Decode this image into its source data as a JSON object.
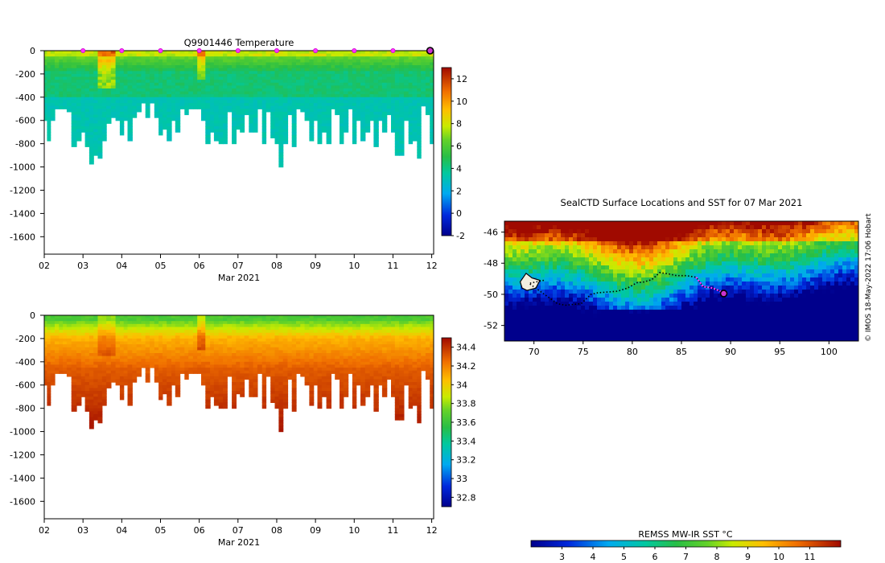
{
  "chart_data": [
    {
      "type": "heatmap",
      "id": "temperature-section",
      "title": "Q9901446  Temperature",
      "xlabel": "Mar 2021",
      "xticks": [
        "02",
        "03",
        "04",
        "05",
        "06",
        "07",
        "08",
        "09",
        "10",
        "11",
        "12"
      ],
      "xlim": [
        2,
        12.05
      ],
      "ylim": [
        -1750,
        0
      ],
      "yticks": [
        0,
        -200,
        -400,
        -600,
        -800,
        -1000,
        -1200,
        -1400,
        -1600
      ],
      "colorbar": {
        "min": -2,
        "max": 13,
        "ticks": [
          12,
          10,
          8,
          6,
          4,
          2,
          0,
          -2
        ]
      },
      "variable": "temperature",
      "surface_markers_day": [
        3,
        4,
        5,
        6,
        7,
        8,
        9,
        10,
        11
      ],
      "last_position_day": 12,
      "profiles": {
        "day": [
          2.0,
          2.07,
          2.16,
          2.27,
          2.38,
          2.48,
          2.58,
          2.7,
          2.83,
          2.95,
          3.05,
          3.16,
          3.27,
          3.38,
          3.49,
          3.6,
          3.72,
          3.84,
          3.95,
          4.05,
          4.15,
          4.27,
          4.38,
          4.5,
          4.61,
          4.72,
          4.84,
          4.95,
          5.05,
          5.16,
          5.28,
          5.38,
          5.5,
          5.62,
          5.72,
          5.84,
          5.95,
          6.05,
          6.16,
          6.28,
          6.38,
          6.5,
          6.61,
          6.72,
          6.84,
          6.95,
          7.05,
          7.16,
          7.28,
          7.39,
          7.5,
          7.62,
          7.72,
          7.84,
          7.95,
          8.05,
          8.16,
          8.28,
          8.39,
          8.5,
          8.61,
          8.72,
          8.84,
          8.95,
          9.05,
          9.16,
          9.28,
          9.4,
          9.5,
          9.62,
          9.72,
          9.84,
          9.95,
          10.05,
          10.16,
          10.28,
          10.4,
          10.5,
          10.62,
          10.72,
          10.84,
          10.95,
          11.05,
          11.16,
          11.28,
          11.4,
          11.5,
          11.62,
          11.72,
          11.84,
          11.95
        ],
        "max_depth": [
          600,
          760,
          600,
          500,
          490,
          500,
          520,
          820,
          760,
          680,
          820,
          960,
          900,
          920,
          760,
          620,
          560,
          600,
          720,
          600,
          760,
          560,
          520,
          450,
          560,
          440,
          560,
          720,
          660,
          760,
          580,
          680,
          480,
          540,
          480,
          500,
          500,
          580,
          780,
          700,
          760,
          780,
          780,
          520,
          800,
          660,
          700,
          540,
          700,
          700,
          500,
          800,
          520,
          740,
          780,
          980,
          800,
          540,
          820,
          480,
          520,
          600,
          760,
          600,
          800,
          680,
          800,
          500,
          540,
          800,
          700,
          500,
          780,
          600,
          760,
          680,
          600,
          820,
          600,
          700,
          540,
          700,
          890,
          880,
          600,
          800,
          760,
          910,
          460,
          540,
          780,
          760
        ]
      }
    },
    {
      "type": "heatmap",
      "id": "salinity-section",
      "title": "",
      "xlabel": "Mar 2021",
      "xticks": [
        "02",
        "03",
        "04",
        "05",
        "06",
        "07",
        "08",
        "09",
        "10",
        "11",
        "12"
      ],
      "xlim": [
        2,
        12.05
      ],
      "ylim": [
        -1750,
        0
      ],
      "yticks": [
        0,
        -200,
        -400,
        -600,
        -800,
        -1000,
        -1200,
        -1400,
        -1600
      ],
      "colorbar": {
        "min": 32.7,
        "max": 34.5,
        "ticks": [
          "34.4",
          "34.2",
          "34",
          "33.8",
          "33.6",
          "33.4",
          "33.2",
          "33",
          "32.8"
        ]
      },
      "variable": "salinity"
    },
    {
      "type": "heatmap",
      "id": "sst-map",
      "title": "SealCTD Surface Locations and SST for 07 Mar 2021",
      "xlim": [
        67,
        103
      ],
      "ylim": [
        -53,
        -45.3
      ],
      "xticks": [
        "70",
        "75",
        "80",
        "85",
        "90",
        "95",
        "100"
      ],
      "yticks": [
        "-46",
        "-48",
        "-50",
        "-52"
      ],
      "colorbar": {
        "label": "REMSS MW-IR SST °C",
        "min": 2,
        "max": 12,
        "ticks": [
          "3",
          "4",
          "5",
          "6",
          "7",
          "8",
          "9",
          "10",
          "11"
        ]
      },
      "track": {
        "lon": [
          71,
          69.5,
          72.4,
          73.2,
          74.8,
          75.8,
          76.5,
          78.5,
          79.5,
          80.5,
          81.2,
          82,
          82.8,
          83.8,
          84.5,
          85.5,
          86.5,
          87.2,
          88.2,
          89.3
        ],
        "lat": [
          -49.1,
          -49.3,
          -50.6,
          -50.7,
          -50.6,
          -50.0,
          -49.9,
          -49.8,
          -49.6,
          -49.25,
          -49.2,
          -49.05,
          -48.6,
          -48.7,
          -48.8,
          -48.8,
          -48.9,
          -49.5,
          -49.6,
          -49.9
        ]
      },
      "recent_days_lon": [
        86.5,
        87.2,
        88.2,
        89.3
      ],
      "recent_days_lat": [
        -48.9,
        -49.5,
        -49.6,
        -49.9
      ],
      "current_position": {
        "lon": 89.3,
        "lat": -49.95
      }
    }
  ],
  "credit": "© IMOS 18-May-2022 17:06 Hobart"
}
